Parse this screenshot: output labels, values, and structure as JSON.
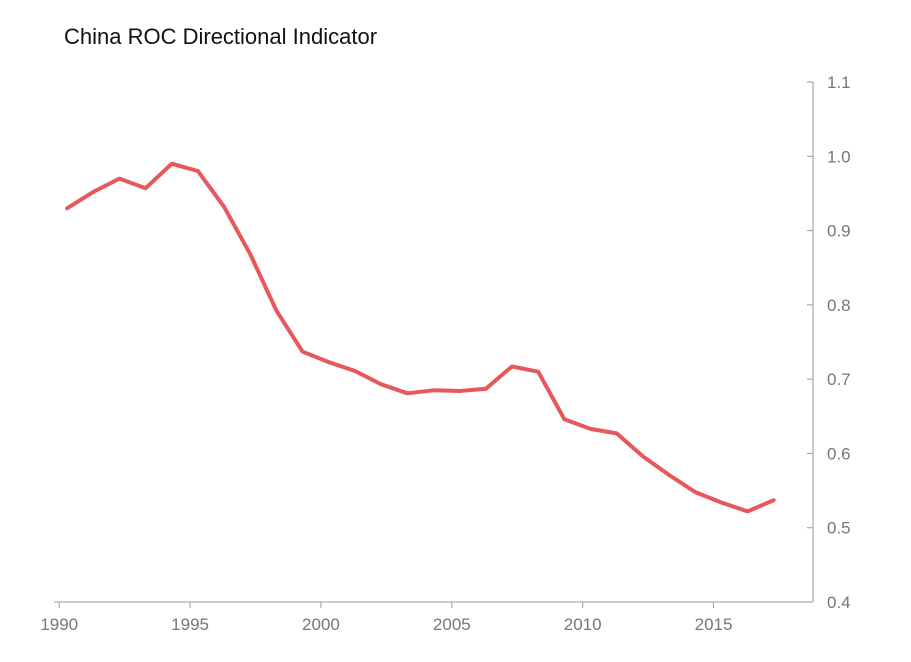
{
  "chart_data": {
    "type": "line",
    "title": "China ROC Directional Indicator",
    "xlabel": "",
    "ylabel": "",
    "xlim": [
      1989.8,
      2018.8
    ],
    "ylim": [
      0.4,
      1.1
    ],
    "y_axis_side": "right",
    "grid": false,
    "x_ticks": [
      1990,
      1995,
      2000,
      2005,
      2010,
      2015
    ],
    "x_tick_labels": [
      "1990",
      "1995",
      "2000",
      "2005",
      "2010",
      "2015"
    ],
    "y_ticks": [
      0.4,
      0.5,
      0.6,
      0.7,
      0.8,
      0.9,
      1.0,
      1.1
    ],
    "y_tick_labels": [
      "0.4",
      "0.5",
      "0.6",
      "0.7",
      "0.8",
      "0.9",
      "1.0",
      "1.1"
    ],
    "series": [
      {
        "name": "China ROC Directional Indicator",
        "color": "#e8575a",
        "x": [
          1990.3,
          1991.3,
          1992.3,
          1993.3,
          1994.3,
          1995.3,
          1996.3,
          1997.3,
          1998.3,
          1999.3,
          2000.3,
          2001.3,
          2002.3,
          2003.3,
          2004.3,
          2005.3,
          2006.3,
          2007.3,
          2008.3,
          2009.3,
          2010.3,
          2011.3,
          2012.3,
          2013.3,
          2014.3,
          2015.3,
          2016.3,
          2017.3
        ],
        "values": [
          0.93,
          0.952,
          0.97,
          0.957,
          0.99,
          0.98,
          0.932,
          0.868,
          0.792,
          0.737,
          0.723,
          0.711,
          0.693,
          0.681,
          0.685,
          0.684,
          0.687,
          0.717,
          0.71,
          0.646,
          0.633,
          0.627,
          0.596,
          0.571,
          0.548,
          0.534,
          0.522,
          0.537
        ]
      }
    ]
  }
}
